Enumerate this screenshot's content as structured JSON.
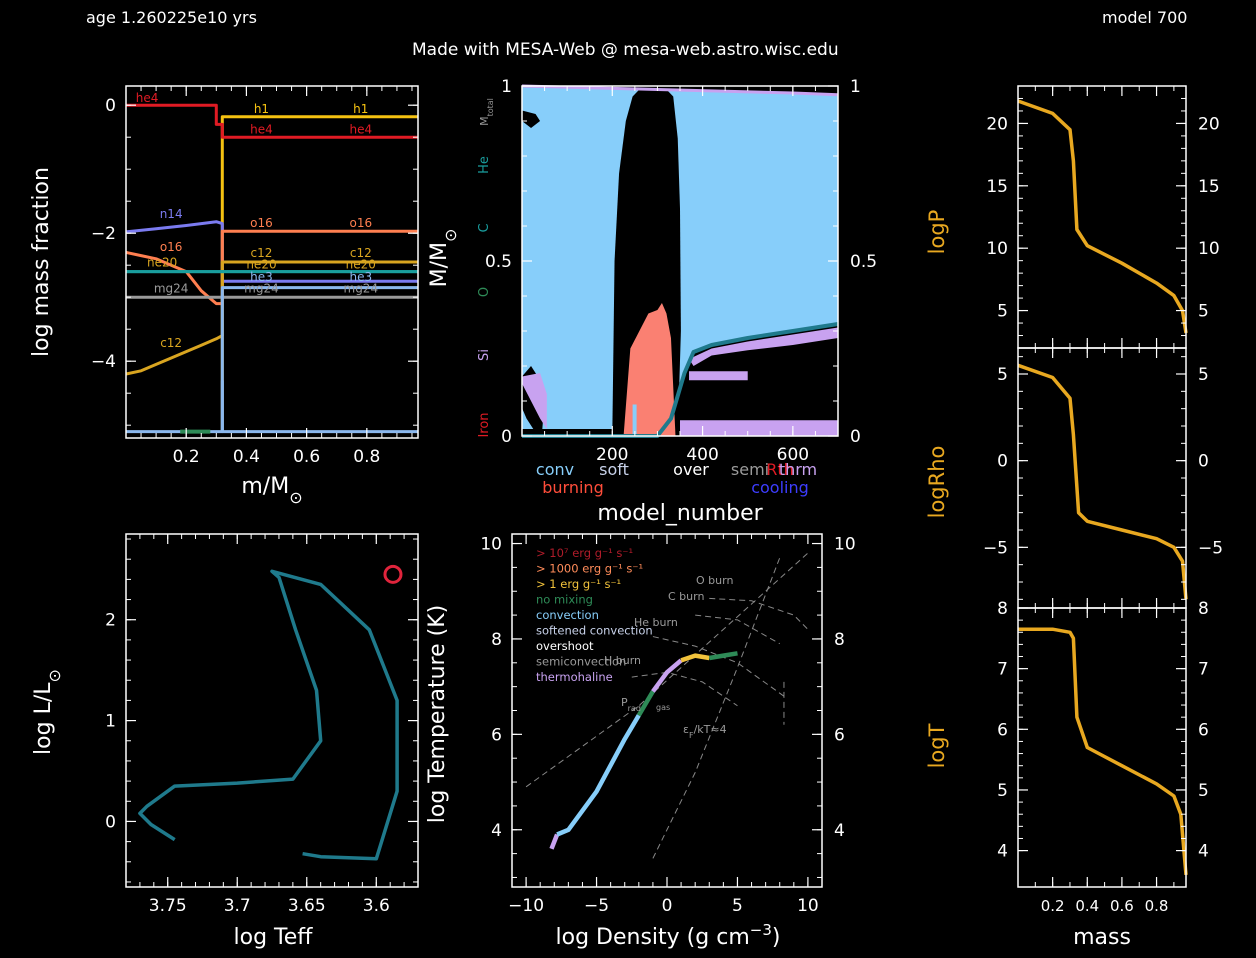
{
  "header": {
    "age": "age 1.260225e10 yrs",
    "model": "model 700",
    "credit": "Made with MESA-Web @ mesa-web.astro.wisc.edu"
  },
  "abundance": {
    "xlabel": "m/M",
    "xlabel_sub": "⊙",
    "ylabel": "log mass fraction",
    "xticks": [
      "0.2",
      "0.4",
      "0.6",
      "0.8"
    ],
    "yticks": [
      "0",
      "−2",
      "−4"
    ],
    "colors": {
      "h1": "#f5c211",
      "he4": "#e01b24",
      "n14": "#7b7bf0",
      "o16": "#ff7f50",
      "c12": "#d9a520",
      "ne20": "#d9a520",
      "mg24": "#9a9a9a",
      "teal": "#1a9e9e",
      "lightblue": "#8bb8ee",
      "lime": "#2e8b57"
    },
    "labels": {
      "he4_core": "he4",
      "h1_env": "h1",
      "he4_env": "he4",
      "n14": "n14",
      "o16": "o16",
      "c12": "c12",
      "ne20": "ne20",
      "mg24": "mg24",
      "o16_core": "o16",
      "c12_core": "c12",
      "o16_b": "o16",
      "c12_b": "c12",
      "ne20_b": "ne20",
      "mg24_b": "mg24",
      "h1_b": "h1",
      "he4_b": "he4",
      "he3": "he3",
      "he3_b": "he3"
    }
  },
  "kipp": {
    "xlabel": "model_number",
    "ylabel": "M/M",
    "ylabel_sub": "⊙",
    "xticks": [
      "200",
      "400",
      "600"
    ],
    "yticks_left": [
      "0",
      "0.5",
      "1"
    ],
    "yticks_right": [
      "0",
      "0.5",
      "1"
    ],
    "side_labels": {
      "mtotal": "M",
      "mtotal_sub": "total",
      "he": "He",
      "c": "C",
      "o": "O",
      "si": "Si",
      "iron": "Iron"
    },
    "legend": {
      "conv": "conv",
      "soft": "soft",
      "over": "over",
      "semi": "semi",
      "thrm": "thrm",
      "rth": "Rth",
      "burning": "burning",
      "cooling": "cooling"
    },
    "colors": {
      "conv": "#87cefa",
      "burn": "#fa8072",
      "mix": "#c8a2f0",
      "line": "#1f7a8c"
    }
  },
  "hr": {
    "xlabel": "log Teff",
    "ylabel": "log L/L",
    "ylabel_sub": "⊙",
    "xticks": [
      "3.75",
      "3.7",
      "3.65",
      "3.6"
    ],
    "yticks": [
      "0",
      "1",
      "2"
    ],
    "track_color": "#1f7a8c",
    "marker_color": "#e0243c"
  },
  "rhoT": {
    "xlabel": "log Density (g cm",
    "xlabel_sup": "−3",
    "xlabel_end": ")",
    "ylabel": "log Temperature (K)",
    "xticks": [
      "−10",
      "−5",
      "0",
      "5",
      "10"
    ],
    "yticks": [
      "4",
      "6",
      "8",
      "10"
    ],
    "legend": [
      {
        "text": "> 10⁷ erg g⁻¹ s⁻¹",
        "color": "#b01c2a"
      },
      {
        "text": "> 1000 erg g⁻¹ s⁻¹",
        "color": "#ff8c5a"
      },
      {
        "text": "> 1 erg g⁻¹ s⁻¹",
        "color": "#f2c33c"
      },
      {
        "text": "no mixing",
        "color": "#2e8b57"
      },
      {
        "text": "convection",
        "color": "#87cefa"
      },
      {
        "text": "softened convection",
        "color": "#c8d2ea"
      },
      {
        "text": "overshoot",
        "color": "#ffffff"
      },
      {
        "text": "semiconvection",
        "color": "#9a9a9a"
      },
      {
        "text": "thermohaline",
        "color": "#c8a2f0"
      }
    ],
    "annot": {
      "oburn": "O burn",
      "cburn": "C burn",
      "heburn": "He burn",
      "hburn": "H burn",
      "prad": "P",
      "prad_sub": "rad",
      "pgas": "gas",
      "eps": "ε",
      "eps_sub": "F",
      "eps_end": "/kT≈4"
    }
  },
  "profiles": {
    "xlabel": "mass",
    "xticks": [
      "0.2",
      "0.4",
      "0.6",
      "0.8"
    ],
    "line_color": "#e8a820",
    "logP": {
      "label": "logP",
      "yticks": [
        "5",
        "10",
        "15",
        "20"
      ]
    },
    "logRho": {
      "label": "logRho",
      "yticks": [
        "−5",
        "0",
        "5"
      ]
    },
    "logT": {
      "label": "logT",
      "yticks": [
        "4",
        "5",
        "6",
        "7",
        "8"
      ]
    }
  },
  "chart_data": [
    {
      "type": "line",
      "title": "",
      "xlabel": "m/M⊙",
      "ylabel": "log mass fraction",
      "xlim": [
        0.0,
        0.97
      ],
      "ylim": [
        -5.2,
        0.3
      ],
      "series": [
        {
          "name": "h1",
          "color": "#f5c211",
          "x": [
            0.32,
            0.32,
            0.97
          ],
          "y": [
            -5.1,
            -0.18,
            -0.18
          ]
        },
        {
          "name": "he4",
          "color": "#e01b24",
          "x": [
            0.0,
            0.3,
            0.3,
            0.32,
            0.32,
            0.97
          ],
          "y": [
            0.0,
            0.0,
            -0.3,
            -0.3,
            -0.5,
            -0.5
          ]
        },
        {
          "name": "n14",
          "color": "#7b7bf0",
          "x": [
            0.0,
            0.1,
            0.2,
            0.3,
            0.32,
            0.32,
            0.97
          ],
          "y": [
            -1.98,
            -1.93,
            -1.88,
            -1.82,
            -1.85,
            -2.75,
            -2.75
          ]
        },
        {
          "name": "o16",
          "color": "#ff7f50",
          "x": [
            0.0,
            0.05,
            0.1,
            0.15,
            0.2,
            0.25,
            0.3,
            0.32,
            0.32,
            0.97
          ],
          "y": [
            -2.3,
            -2.35,
            -2.4,
            -2.5,
            -2.6,
            -2.9,
            -3.1,
            -3.1,
            -1.97,
            -1.97
          ]
        },
        {
          "name": "c12",
          "color": "#d9a520",
          "x": [
            0.0,
            0.05,
            0.1,
            0.15,
            0.2,
            0.25,
            0.3,
            0.32,
            0.32,
            0.97
          ],
          "y": [
            -4.2,
            -4.15,
            -4.05,
            -3.95,
            -3.85,
            -3.75,
            -3.65,
            -3.6,
            -2.45,
            -2.45
          ]
        },
        {
          "name": "ne20",
          "color": "#1a9e9e",
          "x": [
            0.0,
            0.97
          ],
          "y": [
            -2.6,
            -2.6
          ]
        },
        {
          "name": "mg24",
          "color": "#9a9a9a",
          "x": [
            0.0,
            0.97
          ],
          "y": [
            -3.0,
            -3.0
          ]
        },
        {
          "name": "he3",
          "color": "#8bb8ee",
          "x": [
            0.0,
            0.32,
            0.32,
            0.97
          ],
          "y": [
            -5.1,
            -5.1,
            -2.85,
            -2.85
          ]
        }
      ]
    },
    {
      "type": "area",
      "title": "",
      "xlabel": "model_number",
      "ylabel": "M/M⊙",
      "xlim": [
        0,
        700
      ],
      "ylim": [
        0,
        1
      ],
      "series": [
        {
          "name": "M_total",
          "x": [
            0,
            150,
            300,
            450,
            600,
            700
          ],
          "y": [
            1.0,
            0.995,
            0.99,
            0.985,
            0.98,
            0.975
          ]
        },
        {
          "name": "He core boundary",
          "x": [
            0,
            300,
            330,
            360,
            380,
            420,
            500,
            600,
            700
          ],
          "y": [
            0.0,
            0.0,
            0.05,
            0.18,
            0.24,
            0.26,
            0.28,
            0.3,
            0.32
          ]
        },
        {
          "name": "burning region",
          "x": [
            225,
            240,
            260,
            280,
            300,
            310,
            320,
            330,
            340
          ],
          "y": [
            0.0,
            0.25,
            0.3,
            0.35,
            0.36,
            0.38,
            0.35,
            0.28,
            0.0
          ]
        }
      ]
    },
    {
      "type": "line",
      "title": "",
      "xlabel": "log Teff",
      "ylabel": "log L/L⊙",
      "xlim": [
        3.78,
        3.57
      ],
      "ylim": [
        -0.65,
        2.85
      ],
      "series": [
        {
          "name": "track",
          "x": [
            3.745,
            3.762,
            3.77,
            3.765,
            3.745,
            3.7,
            3.66,
            3.64,
            3.643,
            3.658,
            3.67,
            3.675,
            3.64,
            3.605,
            3.585,
            3.585,
            3.6,
            3.64,
            3.653
          ],
          "y": [
            -0.18,
            -0.03,
            0.08,
            0.15,
            0.35,
            0.38,
            0.42,
            0.8,
            1.3,
            1.9,
            2.42,
            2.48,
            2.35,
            1.9,
            1.2,
            0.3,
            -0.37,
            -0.35,
            -0.32
          ]
        }
      ],
      "marker": {
        "x": 3.588,
        "y": 2.45
      }
    },
    {
      "type": "line",
      "title": "",
      "xlabel": "log Density (g cm⁻³)",
      "ylabel": "log Temperature (K)",
      "xlim": [
        -11,
        11
      ],
      "ylim": [
        2.8,
        10.2
      ],
      "series": [
        {
          "name": "profile",
          "x": [
            -8.2,
            -7.8,
            -7,
            -5,
            -3,
            -2,
            -1,
            0,
            1,
            2,
            3,
            4,
            5
          ],
          "y": [
            3.6,
            3.9,
            4.0,
            4.8,
            5.9,
            6.4,
            6.9,
            7.3,
            7.55,
            7.65,
            7.6,
            7.65,
            7.7
          ]
        }
      ]
    },
    {
      "type": "line",
      "title": "",
      "xlabel": "mass",
      "ylabel": "logP",
      "xlim": [
        0.0,
        0.97
      ],
      "ylim": [
        2,
        23
      ],
      "series": [
        {
          "name": "logP",
          "x": [
            0.0,
            0.2,
            0.3,
            0.32,
            0.34,
            0.4,
            0.6,
            0.8,
            0.9,
            0.95,
            0.97
          ],
          "y": [
            21.8,
            20.8,
            19.5,
            17,
            11.5,
            10.2,
            8.8,
            7.2,
            6.2,
            5.0,
            3.2
          ]
        }
      ]
    },
    {
      "type": "line",
      "title": "",
      "xlabel": "mass",
      "ylabel": "logRho",
      "xlim": [
        0.0,
        0.97
      ],
      "ylim": [
        -8.5,
        6.5
      ],
      "series": [
        {
          "name": "logRho",
          "x": [
            0.0,
            0.2,
            0.3,
            0.32,
            0.35,
            0.4,
            0.6,
            0.8,
            0.9,
            0.95,
            0.97
          ],
          "y": [
            5.5,
            4.8,
            3.6,
            1.5,
            -3.0,
            -3.5,
            -4.0,
            -4.5,
            -5.0,
            -5.8,
            -8.0
          ]
        }
      ]
    },
    {
      "type": "line",
      "title": "",
      "xlabel": "mass",
      "ylabel": "logT",
      "xlim": [
        0.0,
        0.97
      ],
      "ylim": [
        3.4,
        8.0
      ],
      "series": [
        {
          "name": "logT",
          "x": [
            0.0,
            0.2,
            0.3,
            0.32,
            0.34,
            0.4,
            0.6,
            0.8,
            0.9,
            0.94,
            0.97
          ],
          "y": [
            7.65,
            7.65,
            7.6,
            7.5,
            6.2,
            5.7,
            5.4,
            5.1,
            4.9,
            4.6,
            3.6
          ]
        }
      ]
    }
  ]
}
